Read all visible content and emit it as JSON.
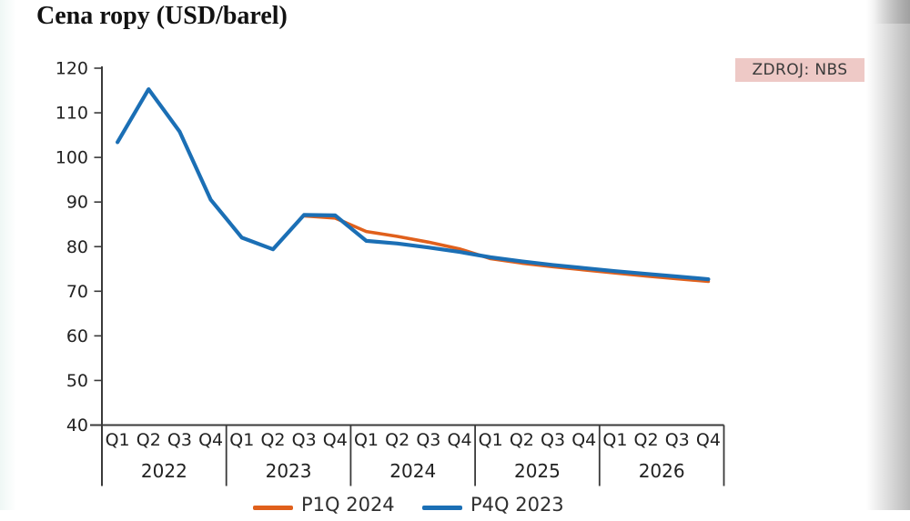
{
  "title": "Cena ropy (USD/barel)",
  "source": {
    "label": "ZDROJ: NBS",
    "bg_color": "#eec9c6",
    "text_color": "#3a3a3a"
  },
  "legend": {
    "items": [
      {
        "label": "P1Q 2024",
        "color": "#e0601c"
      },
      {
        "label": "P4Q 2023",
        "color": "#1b6fb5"
      }
    ]
  },
  "chart_data": {
    "type": "line",
    "title": "Cena ropy (USD/barel)",
    "ylabel": "USD/barel",
    "ylim": [
      40,
      120
    ],
    "yticks": [
      40,
      50,
      60,
      70,
      80,
      90,
      100,
      110,
      120
    ],
    "x_years": [
      "2022",
      "2023",
      "2024",
      "2025",
      "2026"
    ],
    "x_quarters_per_year": [
      "Q1",
      "Q2",
      "Q3",
      "Q4"
    ],
    "grid": false,
    "legend_position": "bottom",
    "axis_color": "#3a3a3a",
    "series": [
      {
        "name": "P1Q 2024",
        "color": "#e0601c",
        "values": [
          null,
          null,
          null,
          null,
          null,
          null,
          86.9,
          86.4,
          83.4,
          82.3,
          81.0,
          79.5,
          77.3,
          76.3,
          75.5,
          74.8,
          74.1,
          73.4,
          72.8,
          72.2
        ]
      },
      {
        "name": "P4Q 2023",
        "color": "#1b6fb5",
        "values": [
          103.4,
          115.3,
          105.8,
          90.5,
          82.0,
          79.4,
          87.1,
          87.0,
          81.3,
          80.7,
          79.8,
          78.8,
          77.6,
          76.7,
          75.9,
          75.2,
          74.5,
          73.9,
          73.3,
          72.7
        ]
      }
    ]
  }
}
